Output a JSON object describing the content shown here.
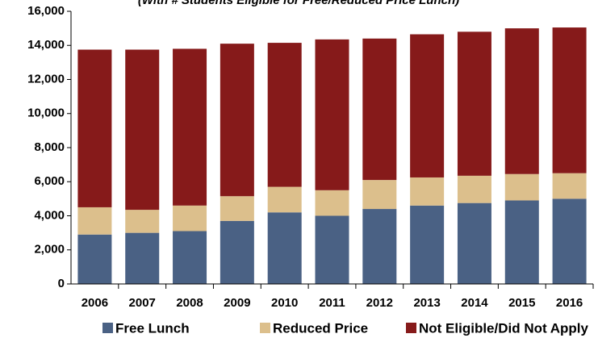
{
  "chart_data": {
    "type": "stacked_bar",
    "subtitle": "(With # Students Eligible for Free/Reduced Price Lunch)",
    "categories": [
      "2006",
      "2007",
      "2008",
      "2009",
      "2010",
      "2011",
      "2012",
      "2013",
      "2014",
      "2015",
      "2016"
    ],
    "series": [
      {
        "name": "Free Lunch",
        "color": "#4a6184",
        "values": [
          2900,
          3000,
          3100,
          3700,
          4200,
          4000,
          4400,
          4600,
          4750,
          4900,
          5000
        ]
      },
      {
        "name": "Reduced Price",
        "color": "#dcbf8c",
        "values": [
          1600,
          1350,
          1500,
          1450,
          1500,
          1500,
          1700,
          1650,
          1600,
          1550,
          1500
        ]
      },
      {
        "name": "Not Eligible/Did Not Apply",
        "color": "#861a1a",
        "values": [
          9250,
          9400,
          9200,
          8950,
          8450,
          8850,
          8300,
          8400,
          8450,
          8550,
          8550
        ]
      }
    ],
    "ylim": [
      0,
      16000
    ],
    "yticks": [
      0,
      {
        "value": 2000,
        "label": "2,000"
      },
      {
        "value": 4000,
        "label": "4,000"
      },
      {
        "value": 6000,
        "label": "6,000"
      },
      {
        "value": 8000,
        "label": "8,000"
      },
      {
        "value": 10000,
        "label": "10,000"
      },
      {
        "value": 12000,
        "label": "12,000"
      },
      {
        "value": 14000,
        "label": "14,000"
      },
      {
        "value": 16000,
        "label": "16,000"
      }
    ],
    "grid": false
  }
}
